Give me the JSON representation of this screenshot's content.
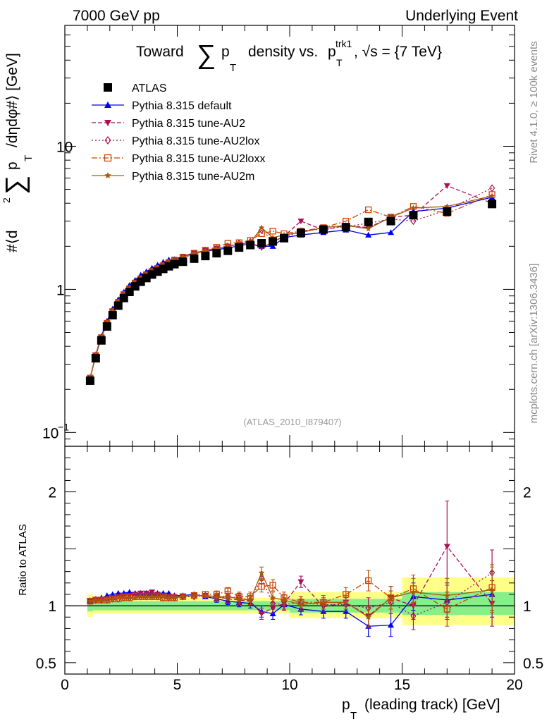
{
  "header": {
    "left": "7000 GeV pp",
    "right": "Underlying Event"
  },
  "side_labels": {
    "rivet": "Rivet 4.1.0, ≥ 100k events",
    "mcplots": "mcplots.cern.ch [arXiv:1306.3436]"
  },
  "chart_data": [
    {
      "type": "scatter",
      "panel": "main",
      "title": "Toward ∑ p_T density vs. p_T^trk1, √s = {7 TeV}",
      "title_parts": {
        "lead": "Toward",
        "sum": "∑",
        "p": "p",
        "sub": "T",
        "mid": "density vs.",
        "p2": "p",
        "sup2": "trk1",
        "sub2": "T",
        "tail": ", √s = {7 TeV}"
      },
      "ylabel": "#⟨d² ∑ p_T /dηdφ#⟩ [GeV]",
      "ylabel_parts": {
        "a": "#⟨d",
        "sq": "2",
        "sum": "∑",
        "p": "p",
        "sub": "T",
        "b": "/dηdφ#⟩ [GeV]"
      },
      "yscale": "log",
      "xlim": [
        0,
        20
      ],
      "ylim": [
        0.08,
        70
      ],
      "xticks": [
        0,
        5,
        10,
        15,
        20
      ],
      "yticks": [
        {
          "value": 0.1,
          "base": "10",
          "exp": "−1"
        },
        {
          "value": 1,
          "base": "1",
          "exp": ""
        },
        {
          "value": 10,
          "base": "10",
          "exp": ""
        }
      ],
      "watermark": "(ATLAS_2010_I879407)",
      "x": [
        1.125,
        1.375,
        1.625,
        1.875,
        2.125,
        2.375,
        2.625,
        2.875,
        3.125,
        3.375,
        3.625,
        3.875,
        4.125,
        4.375,
        4.625,
        4.875,
        5.25,
        5.75,
        6.25,
        6.75,
        7.25,
        7.75,
        8.25,
        8.75,
        9.25,
        9.75,
        10.5,
        11.5,
        12.5,
        13.5,
        14.5,
        15.5,
        17.0,
        19.0
      ],
      "series": [
        {
          "name": "ATLAS",
          "style": "data",
          "color": "#000000",
          "marker": "square",
          "dash": "",
          "values": [
            0.23,
            0.33,
            0.44,
            0.55,
            0.66,
            0.77,
            0.87,
            0.96,
            1.05,
            1.13,
            1.2,
            1.27,
            1.33,
            1.39,
            1.45,
            1.5,
            1.56,
            1.64,
            1.71,
            1.79,
            1.86,
            1.96,
            2.04,
            2.1,
            2.16,
            2.28,
            2.48,
            2.62,
            2.72,
            2.96,
            3.0,
            3.3,
            3.5,
            3.95
          ]
        },
        {
          "name": "Pythia 8.315 default",
          "style": "mc",
          "color": "#0000ee",
          "marker": "triangle-up",
          "dash": "",
          "values": [
            0.24,
            0.35,
            0.47,
            0.6,
            0.73,
            0.85,
            0.96,
            1.07,
            1.16,
            1.26,
            1.33,
            1.41,
            1.48,
            1.55,
            1.61,
            1.62,
            1.7,
            1.8,
            1.84,
            1.9,
            1.94,
            2.02,
            2.08,
            2.0,
            2.0,
            2.3,
            2.4,
            2.5,
            2.6,
            2.4,
            2.5,
            3.5,
            3.7,
            4.4
          ]
        },
        {
          "name": "Pythia 8.315 tune-AU2",
          "style": "mc",
          "color": "#aa1155",
          "marker": "triangle-down",
          "dash": "6,3",
          "values": [
            0.24,
            0.345,
            0.46,
            0.58,
            0.7,
            0.82,
            0.93,
            1.02,
            1.12,
            1.2,
            1.28,
            1.35,
            1.42,
            1.48,
            1.56,
            1.62,
            1.7,
            1.8,
            1.87,
            1.94,
            2.0,
            2.07,
            2.12,
            1.95,
            2.14,
            2.35,
            3.0,
            2.6,
            2.8,
            2.7,
            3.2,
            3.3,
            5.3,
            4.0
          ]
        },
        {
          "name": "Pythia 8.315 tune-AU2lox",
          "style": "mc",
          "color": "#aa1155",
          "marker": "diamond",
          "dash": "2,3",
          "values": [
            0.24,
            0.345,
            0.46,
            0.58,
            0.7,
            0.81,
            0.92,
            1.01,
            1.1,
            1.18,
            1.26,
            1.33,
            1.4,
            1.46,
            1.53,
            1.6,
            1.66,
            1.76,
            1.86,
            1.92,
            2.0,
            2.1,
            2.15,
            2.6,
            2.2,
            2.3,
            2.55,
            2.65,
            2.75,
            2.9,
            3.1,
            3.0,
            3.6,
            5.1
          ]
        },
        {
          "name": "Pythia 8.315 tune-AU2loxx",
          "style": "mc",
          "color": "#cc4400",
          "marker": "open-square",
          "dash": "8,3,2,3",
          "values": [
            0.24,
            0.345,
            0.46,
            0.58,
            0.7,
            0.81,
            0.92,
            1.01,
            1.1,
            1.18,
            1.26,
            1.33,
            1.4,
            1.46,
            1.53,
            1.6,
            1.68,
            1.79,
            1.88,
            1.97,
            2.1,
            2.12,
            2.2,
            2.45,
            2.55,
            2.45,
            2.55,
            2.7,
            3.0,
            3.6,
            3.2,
            3.8,
            3.4,
            4.6
          ]
        },
        {
          "name": "Pythia 8.315 tune-AU2m",
          "style": "mc",
          "color": "#a65a0a",
          "marker": "star",
          "dash": "",
          "values": [
            0.24,
            0.345,
            0.46,
            0.58,
            0.7,
            0.82,
            0.93,
            1.02,
            1.11,
            1.19,
            1.27,
            1.34,
            1.41,
            1.48,
            1.55,
            1.6,
            1.68,
            1.78,
            1.86,
            1.92,
            2.0,
            2.07,
            2.12,
            2.7,
            2.3,
            2.4,
            2.5,
            2.7,
            2.8,
            2.65,
            3.2,
            3.7,
            3.8,
            4.5
          ]
        }
      ]
    },
    {
      "type": "scatter",
      "panel": "ratio",
      "ylabel": "Ratio to ATLAS",
      "xlabel": "p_T (leading track) [GeV]",
      "xlabel_parts": {
        "p": "p",
        "sub": "T",
        "rest": "(leading track) [GeV]"
      },
      "xlim": [
        0,
        20
      ],
      "ylim": [
        0.4,
        2.4
      ],
      "yticks": [
        0.5,
        1,
        2
      ],
      "uncertainty_bands": [
        {
          "x0": 1.0,
          "x1": 1.25,
          "green": [
            0.95,
            1.05
          ],
          "yellow": [
            0.9,
            1.1
          ]
        },
        {
          "x0": 1.25,
          "x1": 5.0,
          "green": [
            0.96,
            1.04
          ],
          "yellow": [
            0.93,
            1.07
          ]
        },
        {
          "x0": 5.0,
          "x1": 10.0,
          "green": [
            0.96,
            1.04
          ],
          "yellow": [
            0.93,
            1.07
          ]
        },
        {
          "x0": 10.0,
          "x1": 15.0,
          "green": [
            0.94,
            1.06
          ],
          "yellow": [
            0.89,
            1.12
          ]
        },
        {
          "x0": 15.0,
          "x1": 20.0,
          "green": [
            0.92,
            1.12
          ],
          "yellow": [
            0.83,
            1.25
          ]
        }
      ],
      "series": [
        {
          "name": "Pythia 8.315 default",
          "values": [
            1.04,
            1.06,
            1.07,
            1.09,
            1.1,
            1.11,
            1.11,
            1.12,
            1.11,
            1.11,
            1.11,
            1.11,
            1.11,
            1.11,
            1.11,
            1.09,
            1.09,
            1.1,
            1.08,
            1.06,
            1.04,
            1.03,
            1.02,
            0.95,
            0.93,
            1.01,
            0.97,
            0.95,
            0.95,
            0.82,
            0.83,
            1.08,
            1.05,
            1.1
          ],
          "errors": [
            0.01,
            0.01,
            0.01,
            0.01,
            0.01,
            0.01,
            0.01,
            0.01,
            0.01,
            0.01,
            0.01,
            0.01,
            0.01,
            0.01,
            0.01,
            0.015,
            0.015,
            0.02,
            0.02,
            0.03,
            0.03,
            0.04,
            0.04,
            0.05,
            0.05,
            0.05,
            0.05,
            0.06,
            0.06,
            0.09,
            0.1,
            0.12,
            0.15,
            0.2
          ]
        },
        {
          "name": "Pythia 8.315 tune-AU2",
          "values": [
            1.04,
            1.05,
            1.05,
            1.06,
            1.07,
            1.08,
            1.09,
            1.09,
            1.1,
            1.11,
            1.11,
            1.12,
            1.1,
            1.09,
            1.08,
            1.08,
            1.08,
            1.09,
            1.09,
            1.08,
            1.06,
            1.05,
            1.04,
            0.93,
            0.98,
            1.02,
            1.21,
            0.99,
            1.03,
            0.91,
            1.07,
            1.0,
            1.52,
            1.02
          ],
          "errors": [
            0.01,
            0.01,
            0.01,
            0.01,
            0.01,
            0.01,
            0.01,
            0.01,
            0.01,
            0.01,
            0.01,
            0.01,
            0.01,
            0.01,
            0.01,
            0.015,
            0.015,
            0.02,
            0.02,
            0.03,
            0.03,
            0.04,
            0.04,
            0.05,
            0.05,
            0.05,
            0.05,
            0.06,
            0.06,
            0.09,
            0.1,
            0.12,
            0.4,
            0.2
          ]
        },
        {
          "name": "Pythia 8.315 tune-AU2lox",
          "values": [
            1.04,
            1.05,
            1.05,
            1.05,
            1.06,
            1.06,
            1.07,
            1.07,
            1.08,
            1.08,
            1.08,
            1.08,
            1.08,
            1.07,
            1.07,
            1.07,
            1.08,
            1.08,
            1.09,
            1.07,
            1.08,
            1.07,
            1.05,
            1.24,
            1.02,
            1.01,
            1.03,
            1.01,
            1.01,
            0.98,
            1.03,
            0.91,
            1.03,
            1.29
          ],
          "errors": [
            0.01,
            0.01,
            0.01,
            0.01,
            0.01,
            0.01,
            0.01,
            0.01,
            0.01,
            0.01,
            0.01,
            0.01,
            0.01,
            0.01,
            0.01,
            0.015,
            0.015,
            0.02,
            0.02,
            0.03,
            0.03,
            0.04,
            0.04,
            0.05,
            0.05,
            0.05,
            0.05,
            0.06,
            0.06,
            0.09,
            0.1,
            0.12,
            0.15,
            0.2
          ]
        },
        {
          "name": "Pythia 8.315 tune-AU2loxx",
          "values": [
            1.04,
            1.05,
            1.05,
            1.05,
            1.06,
            1.06,
            1.07,
            1.07,
            1.08,
            1.08,
            1.08,
            1.08,
            1.08,
            1.07,
            1.07,
            1.07,
            1.08,
            1.09,
            1.1,
            1.1,
            1.13,
            1.08,
            1.08,
            1.17,
            1.18,
            1.07,
            1.03,
            1.03,
            1.1,
            1.22,
            1.07,
            1.15,
            0.97,
            1.16
          ],
          "errors": [
            0.01,
            0.01,
            0.01,
            0.01,
            0.01,
            0.01,
            0.01,
            0.01,
            0.01,
            0.01,
            0.01,
            0.01,
            0.01,
            0.01,
            0.01,
            0.015,
            0.015,
            0.02,
            0.02,
            0.03,
            0.03,
            0.04,
            0.04,
            0.05,
            0.05,
            0.05,
            0.05,
            0.06,
            0.06,
            0.09,
            0.1,
            0.12,
            0.15,
            0.2
          ]
        },
        {
          "name": "Pythia 8.315 tune-AU2m",
          "values": [
            1.04,
            1.05,
            1.05,
            1.06,
            1.06,
            1.07,
            1.07,
            1.07,
            1.07,
            1.08,
            1.08,
            1.08,
            1.08,
            1.08,
            1.07,
            1.07,
            1.08,
            1.09,
            1.09,
            1.08,
            1.08,
            1.06,
            1.05,
            1.29,
            1.07,
            1.05,
            1.01,
            1.03,
            1.03,
            0.9,
            1.07,
            1.12,
            1.09,
            1.14
          ],
          "errors": [
            0.01,
            0.01,
            0.01,
            0.01,
            0.01,
            0.01,
            0.01,
            0.01,
            0.01,
            0.01,
            0.01,
            0.01,
            0.01,
            0.01,
            0.01,
            0.015,
            0.015,
            0.02,
            0.02,
            0.03,
            0.03,
            0.04,
            0.04,
            0.05,
            0.05,
            0.05,
            0.05,
            0.06,
            0.06,
            0.09,
            0.1,
            0.12,
            0.15,
            0.2
          ]
        }
      ]
    }
  ]
}
